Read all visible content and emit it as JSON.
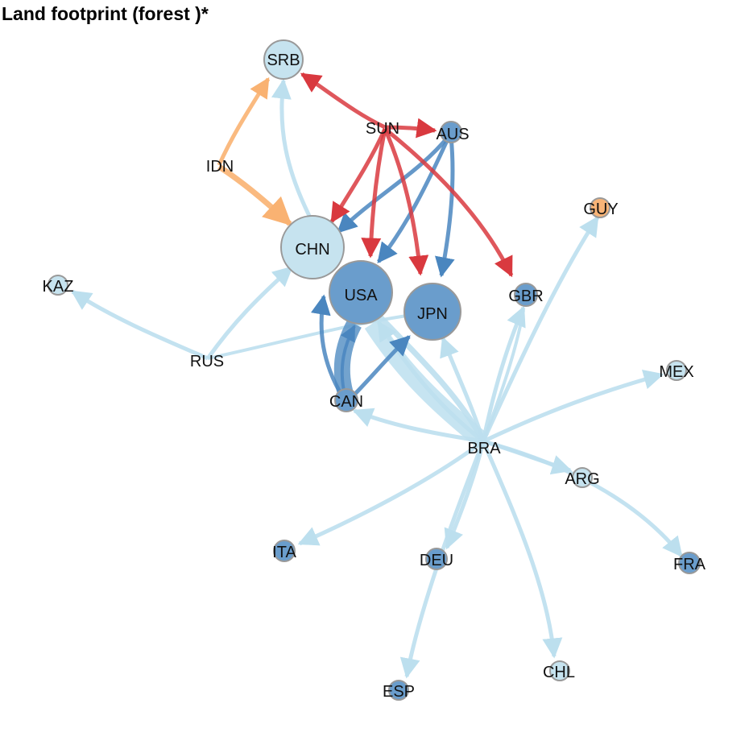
{
  "title": "Land footprint (forest )*",
  "colors": {
    "light_blue": "#bcdfee",
    "mid_blue": "#5b93c5",
    "dark_blue_edge": "#4a86bf",
    "red": "#d9393f",
    "orange": "#f9b272",
    "node_border": "#999999",
    "node_light": "#c6e3ef",
    "node_blue": "#6a9dcc",
    "node_orange": "#f8b477"
  },
  "network": {
    "nodes": [
      {
        "id": "SRB",
        "label": "SRB",
        "color": "light"
      },
      {
        "id": "SUN",
        "label": "SUN",
        "color": "none"
      },
      {
        "id": "AUS",
        "label": "AUS",
        "color": "blue"
      },
      {
        "id": "IDN",
        "label": "IDN",
        "color": "none"
      },
      {
        "id": "GUY",
        "label": "GUY",
        "color": "orange"
      },
      {
        "id": "CHN",
        "label": "CHN",
        "color": "light"
      },
      {
        "id": "USA",
        "label": "USA",
        "color": "blue"
      },
      {
        "id": "JPN",
        "label": "JPN",
        "color": "blue"
      },
      {
        "id": "GBR",
        "label": "GBR",
        "color": "blue"
      },
      {
        "id": "KAZ",
        "label": "KAZ",
        "color": "light"
      },
      {
        "id": "RUS",
        "label": "RUS",
        "color": "none"
      },
      {
        "id": "MEX",
        "label": "MEX",
        "color": "light"
      },
      {
        "id": "CAN",
        "label": "CAN",
        "color": "blue"
      },
      {
        "id": "BRA",
        "label": "BRA",
        "color": "none"
      },
      {
        "id": "ARG",
        "label": "ARG",
        "color": "light"
      },
      {
        "id": "ITA",
        "label": "ITA",
        "color": "blue"
      },
      {
        "id": "DEU",
        "label": "DEU",
        "color": "blue"
      },
      {
        "id": "FRA",
        "label": "FRA",
        "color": "blue"
      },
      {
        "id": "CHL",
        "label": "CHL",
        "color": "light"
      },
      {
        "id": "ESP",
        "label": "ESP",
        "color": "blue"
      }
    ],
    "edges": [
      {
        "from": "SUN",
        "to": "SRB",
        "color": "red"
      },
      {
        "from": "SUN",
        "to": "AUS",
        "color": "red"
      },
      {
        "from": "SUN",
        "to": "CHN",
        "color": "red"
      },
      {
        "from": "SUN",
        "to": "USA",
        "color": "red"
      },
      {
        "from": "SUN",
        "to": "JPN",
        "color": "red"
      },
      {
        "from": "SUN",
        "to": "GBR",
        "color": "red"
      },
      {
        "from": "AUS",
        "to": "CHN",
        "color": "blue"
      },
      {
        "from": "AUS",
        "to": "USA",
        "color": "blue"
      },
      {
        "from": "AUS",
        "to": "JPN",
        "color": "blue"
      },
      {
        "from": "IDN",
        "to": "SRB",
        "color": "orange"
      },
      {
        "from": "IDN",
        "to": "CHN",
        "color": "orange"
      },
      {
        "from": "CHN",
        "to": "SRB",
        "color": "light"
      },
      {
        "from": "RUS",
        "to": "KAZ",
        "color": "light"
      },
      {
        "from": "RUS",
        "to": "CHN",
        "color": "light"
      },
      {
        "from": "RUS",
        "to": "JPN",
        "color": "light"
      },
      {
        "from": "CAN",
        "to": "USA",
        "color": "blue"
      },
      {
        "from": "CAN",
        "to": "JPN",
        "color": "blue"
      },
      {
        "from": "BRA",
        "to": "USA",
        "color": "light"
      },
      {
        "from": "BRA",
        "to": "JPN",
        "color": "light"
      },
      {
        "from": "BRA",
        "to": "CHN",
        "color": "light"
      },
      {
        "from": "BRA",
        "to": "CAN",
        "color": "light"
      },
      {
        "from": "BRA",
        "to": "GBR",
        "color": "light"
      },
      {
        "from": "BRA",
        "to": "GUY",
        "color": "light"
      },
      {
        "from": "BRA",
        "to": "MEX",
        "color": "light"
      },
      {
        "from": "BRA",
        "to": "ARG",
        "color": "light"
      },
      {
        "from": "BRA",
        "to": "FRA",
        "color": "light"
      },
      {
        "from": "BRA",
        "to": "ITA",
        "color": "light"
      },
      {
        "from": "BRA",
        "to": "DEU",
        "color": "light"
      },
      {
        "from": "BRA",
        "to": "CHL",
        "color": "light"
      },
      {
        "from": "BRA",
        "to": "ESP",
        "color": "light"
      }
    ]
  }
}
